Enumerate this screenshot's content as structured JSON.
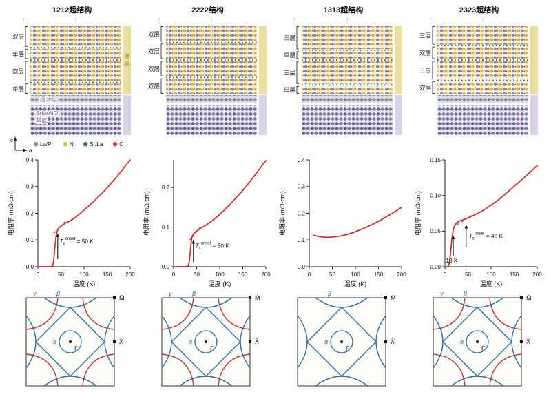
{
  "columns": [
    {
      "title": "1212超结构",
      "structure": {
        "ellipsis": "⋮",
        "layers": [
          {
            "label": "双层",
            "units": 2
          },
          {
            "label": "单层",
            "units": 1
          },
          {
            "label": "双层",
            "units": 2
          },
          {
            "label": "单层",
            "units": 1
          }
        ],
        "film_label": "薄膜",
        "buffer_label": "缓冲层",
        "substrate_label_line1": "SrLaAlO₄",
        "substrate_label_line2": "基底",
        "show_labels": true
      },
      "fermi": {
        "gamma": "γ",
        "beta": "β",
        "alpha": "α",
        "m_point": "M̄",
        "x_point": "X̄",
        "gamma_point": "Γ̄",
        "show_gamma": true
      }
    },
    {
      "title": "2222结构",
      "structure": {
        "ellipsis": "⋮",
        "layers": [
          {
            "label": "双层",
            "units": 2
          },
          {
            "label": "双层",
            "units": 2
          },
          {
            "label": "双层",
            "units": 2
          },
          {
            "label": "双层",
            "units": 2
          }
        ],
        "show_labels": false
      },
      "fermi": {
        "gamma": "γ",
        "beta": "β",
        "alpha": "α",
        "m_point": "M̄",
        "x_point": "X̄",
        "gamma_point": "Γ̄",
        "show_gamma": true
      }
    },
    {
      "title": "1313超结构",
      "structure": {
        "ellipsis": "⋮",
        "layers": [
          {
            "label": "三层",
            "units": 3
          },
          {
            "label": "单层",
            "units": 1
          },
          {
            "label": "三层",
            "units": 3
          },
          {
            "label": "单层",
            "units": 1
          }
        ],
        "show_labels": false
      },
      "fermi": {
        "beta": "β",
        "alpha": "α",
        "m_point": "M̄",
        "x_point": "X̄",
        "gamma_point": "Γ̄",
        "show_gamma": false
      }
    },
    {
      "title": "2323超结构",
      "structure": {
        "ellipsis": "⋮",
        "layers": [
          {
            "label": "三层",
            "units": 3
          },
          {
            "label": "双层",
            "units": 2
          },
          {
            "label": "三层",
            "units": 3
          },
          {
            "label": "双层",
            "units": 2
          }
        ],
        "show_labels": false
      },
      "fermi": {
        "gamma": "γ",
        "beta": "β",
        "alpha": "α",
        "m_point": "M̄",
        "x_point": "X̄",
        "gamma_point": "Γ̄",
        "show_gamma": true
      }
    }
  ],
  "legend": {
    "axis_c": "c",
    "axis_a": "a",
    "items": [
      {
        "label": "La/Pr",
        "color": "#7d88aa"
      },
      {
        "label": "Ni",
        "color": "#d9b83c"
      },
      {
        "label": "Sr/La",
        "color": "#2e6f6e"
      },
      {
        "label": "O",
        "color": "#d04343"
      }
    ]
  },
  "chart_data": [
    {
      "type": "line",
      "title": "",
      "xlabel": "温度 (K)",
      "ylabel": "电阻率 (mΩ·cm)",
      "xlim": [
        0,
        200
      ],
      "ylim": [
        0,
        0.4
      ],
      "xticks": [
        0,
        50,
        100,
        150,
        200
      ],
      "yticks": [
        0,
        0.1,
        0.2,
        0.3,
        0.4
      ],
      "ytick_decimals": 1,
      "series": [
        {
          "name": "resistivity",
          "x": [
            0,
            5,
            10,
            15,
            20,
            25,
            30,
            32,
            34,
            36,
            38,
            40,
            43,
            46,
            50,
            55,
            60,
            70,
            80,
            90,
            100,
            110,
            120,
            130,
            140,
            150,
            160,
            170,
            180,
            190,
            200
          ],
          "y": [
            0,
            0,
            0,
            0,
            0,
            0,
            0.001,
            0.004,
            0.02,
            0.055,
            0.095,
            0.122,
            0.138,
            0.146,
            0.152,
            0.158,
            0.163,
            0.172,
            0.183,
            0.197,
            0.212,
            0.227,
            0.243,
            0.26,
            0.277,
            0.295,
            0.315,
            0.335,
            0.356,
            0.378,
            0.4
          ]
        }
      ],
      "guide": {
        "x": [
          34,
          60
        ],
        "y": [
          0.125,
          0.17
        ]
      },
      "annotations": [
        {
          "arrow_x": 43,
          "arrow_y0": 0.028,
          "arrow_y1": 0.125,
          "label": {
            "pre": "T",
            "sub": "c",
            "sup": "onset",
            "post": " = 50 K"
          },
          "label_x": 47,
          "label_y": 0.088
        }
      ]
    },
    {
      "type": "line",
      "title": "",
      "xlabel": "温度 (K)",
      "ylabel": "电阻率 (mΩ·cm)",
      "xlim": [
        0,
        200
      ],
      "ylim": [
        0,
        0.27
      ],
      "xticks": [
        0,
        50,
        100,
        150,
        200
      ],
      "yticks": [
        0,
        0.1,
        0.2
      ],
      "ytick_decimals": 1,
      "series": [
        {
          "name": "resistivity",
          "x": [
            0,
            5,
            10,
            15,
            20,
            25,
            30,
            32,
            34,
            36,
            38,
            40,
            43,
            46,
            50,
            55,
            60,
            70,
            80,
            90,
            100,
            110,
            120,
            130,
            140,
            150,
            160,
            170,
            180,
            190,
            200
          ],
          "y": [
            0,
            0,
            0,
            0,
            0,
            0,
            0.001,
            0.003,
            0.012,
            0.035,
            0.06,
            0.075,
            0.083,
            0.087,
            0.09,
            0.094,
            0.098,
            0.105,
            0.113,
            0.122,
            0.132,
            0.143,
            0.155,
            0.167,
            0.18,
            0.193,
            0.207,
            0.222,
            0.237,
            0.253,
            0.268
          ]
        }
      ],
      "guide": {
        "x": [
          34,
          58
        ],
        "y": [
          0.066,
          0.1
        ]
      },
      "annotations": [
        {
          "arrow_x": 43,
          "arrow_y0": 0.012,
          "arrow_y1": 0.068,
          "label": {
            "pre": "T",
            "sub": "c",
            "sup": "onset",
            "post": " = 50 K"
          },
          "label_x": 47,
          "label_y": 0.048
        }
      ]
    },
    {
      "type": "line",
      "title": "",
      "xlabel": "温度 (K)",
      "ylabel": "电阻率 (mΩ·cm)",
      "xlim": [
        0,
        200
      ],
      "ylim": [
        0,
        0.4
      ],
      "xticks": [
        0,
        50,
        100,
        150,
        200
      ],
      "yticks": [
        0,
        0.1,
        0.2,
        0.3,
        0.4
      ],
      "ytick_decimals": 1,
      "series": [
        {
          "name": "resistivity",
          "x": [
            10,
            20,
            30,
            40,
            50,
            60,
            70,
            80,
            90,
            100,
            110,
            120,
            130,
            140,
            150,
            160,
            170,
            180,
            190,
            200
          ],
          "y": [
            0.118,
            0.113,
            0.111,
            0.11,
            0.111,
            0.113,
            0.116,
            0.12,
            0.125,
            0.131,
            0.138,
            0.145,
            0.153,
            0.161,
            0.17,
            0.18,
            0.19,
            0.2,
            0.211,
            0.222
          ]
        }
      ],
      "annotations": []
    },
    {
      "type": "line",
      "title": "",
      "xlabel": "温度 (K)",
      "ylabel": "电阻率 (mΩ·cm)",
      "xlim": [
        0,
        200
      ],
      "ylim": [
        0,
        0.15
      ],
      "xticks": [
        0,
        50,
        100,
        150,
        200
      ],
      "yticks": [
        0,
        0.05,
        0.1,
        0.15
      ],
      "ytick_decimals": 2,
      "series": [
        {
          "name": "resistivity",
          "x": [
            5,
            7,
            9,
            11,
            13,
            15,
            17,
            19,
            22,
            26,
            30,
            35,
            40,
            46,
            50,
            55,
            60,
            70,
            80,
            90,
            100,
            110,
            120,
            130,
            140,
            150,
            160,
            170,
            180,
            190,
            200
          ],
          "y": [
            0,
            0.001,
            0.004,
            0.012,
            0.025,
            0.038,
            0.048,
            0.054,
            0.059,
            0.062,
            0.0635,
            0.065,
            0.066,
            0.0675,
            0.0685,
            0.07,
            0.0715,
            0.0745,
            0.078,
            0.082,
            0.0865,
            0.091,
            0.096,
            0.1015,
            0.107,
            0.113,
            0.1185,
            0.124,
            0.13,
            0.136,
            0.142
          ]
        }
      ],
      "guide": {
        "x": [
          26,
          60
        ],
        "y": [
          0.059,
          0.073
        ]
      },
      "annotations": [
        {
          "arrow_x": 46,
          "arrow_y0": 0.028,
          "arrow_y1": 0.059,
          "label": {
            "pre": "T",
            "sub": "c",
            "sup": "onset",
            "post": " = 46 K"
          },
          "label_x": 52,
          "label_y": 0.04
        },
        {
          "arrow_x": 18,
          "arrow_y0": 0.016,
          "arrow_y1": 0.044,
          "label": {
            "pre": "18 K"
          },
          "label_x": 2,
          "label_y": 0.006
        }
      ]
    }
  ],
  "colors": {
    "curve": "#e02329",
    "guide": "#4a5fc1",
    "fermi_blue": "#2f6ea5",
    "fermi_red": "#c03a3e",
    "film_bg": "#f6f0da",
    "film_strip": "#eadf9e",
    "substrate_bg": "#e8e4f2",
    "substrate_strip": "#d9d3e9",
    "buffer_bg": "#dedede",
    "interface_dot": "#2e6f6e",
    "film_label_color": "#a8942e",
    "buffer_label_color": "#8a8a8a",
    "substrate_label_color": "#7a5fb0"
  }
}
